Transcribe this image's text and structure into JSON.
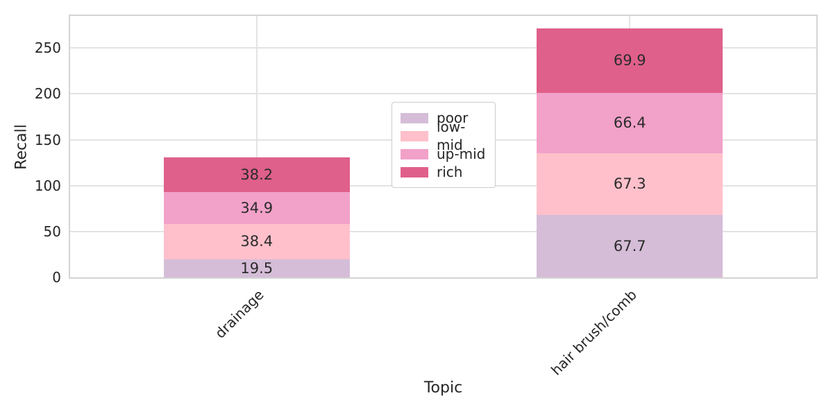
{
  "figure": {
    "background": "#ffffff",
    "text_color": "#262626",
    "grid_color": "#e3e3e3",
    "spine_color": "#d4d4d4",
    "legend_border_color": "#cccccc"
  },
  "chart_data": {
    "type": "bar",
    "stacked": true,
    "title": "",
    "xlabel": "Topic",
    "ylabel": "Recall",
    "categories": [
      "drainage",
      "hair brush/comb"
    ],
    "series": [
      {
        "name": "poor",
        "color": "#d5bdd8",
        "values": [
          19.5,
          67.7
        ]
      },
      {
        "name": "low-mid",
        "color": "#ffc0cb",
        "values": [
          38.4,
          67.3
        ]
      },
      {
        "name": "up-mid",
        "color": "#f2a1c9",
        "values": [
          34.9,
          66.4
        ]
      },
      {
        "name": "rich",
        "color": "#df608a",
        "values": [
          38.2,
          69.9
        ]
      }
    ],
    "value_labels": [
      [
        "19.5",
        "38.4",
        "34.9",
        "38.2"
      ],
      [
        "67.7",
        "67.3",
        "66.4",
        "69.9"
      ]
    ],
    "yticks": [
      0,
      50,
      100,
      150,
      200,
      250
    ],
    "ylim": [
      0,
      285
    ],
    "grid": true,
    "legend": {
      "position": "center",
      "entries": [
        "poor",
        "low-mid",
        "up-mid",
        "rich"
      ]
    }
  }
}
